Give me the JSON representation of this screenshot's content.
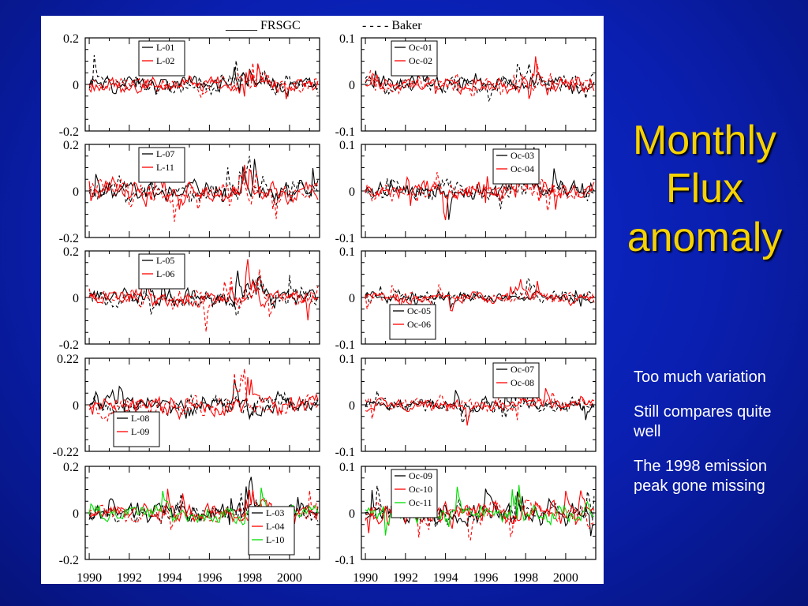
{
  "slide": {
    "title_lines": [
      "Monthly",
      "Flux",
      "anomaly"
    ],
    "notes": [
      "Too much variation",
      "Still compares quite well",
      "The 1998 emission peak gone missing"
    ],
    "title_color": "#f5d200",
    "background_color": "#0a1fb0"
  },
  "figure": {
    "header": {
      "solid_label": "_____ FRSGC",
      "dashed_label": "- - - - Baker"
    }
  },
  "chart_data": {
    "type": "line",
    "x_ticks": [
      "1990",
      "1992",
      "1994",
      "1996",
      "1998",
      "2000"
    ],
    "xlim": [
      1989.8,
      2001.5
    ],
    "colors": {
      "series1": "#000000",
      "series2": "#ff0000",
      "series3": "#00dd00"
    },
    "panels": [
      {
        "row": 0,
        "col": 0,
        "ylim": [
          -0.2,
          0.2
        ],
        "yticks": [
          "0.2",
          "0",
          "-0.2"
        ],
        "legend": [
          "L-01",
          "L-02"
        ],
        "legend_pos": "top-left",
        "amp": 0.045
      },
      {
        "row": 0,
        "col": 1,
        "ylim": [
          -0.1,
          0.1
        ],
        "yticks": [
          "0.1",
          "0",
          "-0.1"
        ],
        "legend": [
          "Oc-01",
          "Oc-02"
        ],
        "legend_pos": "top-left",
        "amp": 0.025
      },
      {
        "row": 1,
        "col": 0,
        "ylim": [
          -0.2,
          0.2
        ],
        "yticks": [
          "0.2",
          "0",
          "-0.2"
        ],
        "legend": [
          "L-07",
          "L-11"
        ],
        "legend_pos": "top-left",
        "amp": 0.055
      },
      {
        "row": 1,
        "col": 1,
        "ylim": [
          -0.1,
          0.1
        ],
        "yticks": [
          "0.1",
          "0",
          "-0.1"
        ],
        "legend": [
          "Oc-03",
          "Oc-04"
        ],
        "legend_pos": "top-right",
        "amp": 0.025
      },
      {
        "row": 2,
        "col": 0,
        "ylim": [
          -0.2,
          0.2
        ],
        "yticks": [
          "0.2",
          "0",
          "-0.2"
        ],
        "legend": [
          "L-05",
          "L-06"
        ],
        "legend_pos": "top-left",
        "amp": 0.05
      },
      {
        "row": 2,
        "col": 1,
        "ylim": [
          -0.1,
          0.1
        ],
        "yticks": [
          "0.1",
          "0",
          "-0.1"
        ],
        "legend": [
          "Oc-05",
          "Oc-06"
        ],
        "legend_pos": "bottom-left",
        "amp": 0.015
      },
      {
        "row": 3,
        "col": 0,
        "ylim": [
          -0.22,
          0.22
        ],
        "yticks": [
          "0.22",
          "0",
          "-0.22"
        ],
        "legend": [
          "L-08",
          "L-09"
        ],
        "legend_pos": "bottom-left",
        "amp": 0.06
      },
      {
        "row": 3,
        "col": 1,
        "ylim": [
          -0.1,
          0.1
        ],
        "yticks": [
          "0.1",
          "0",
          "-0.1"
        ],
        "legend": [
          "Oc-07",
          "Oc-08"
        ],
        "legend_pos": "top-right",
        "amp": 0.018
      },
      {
        "row": 4,
        "col": 0,
        "ylim": [
          -0.2,
          0.2
        ],
        "yticks": [
          "0.2",
          "0",
          "-0.2"
        ],
        "legend": [
          "L-03",
          "L-04",
          "L-10"
        ],
        "legend_pos": "bottom-right",
        "amp": 0.05
      },
      {
        "row": 4,
        "col": 1,
        "ylim": [
          -0.1,
          0.1
        ],
        "yticks": [
          "0.1",
          "0",
          "-0.1"
        ],
        "legend": [
          "Oc-09",
          "Oc-10",
          "Oc-11"
        ],
        "legend_pos": "top-left",
        "amp": 0.03
      }
    ]
  }
}
